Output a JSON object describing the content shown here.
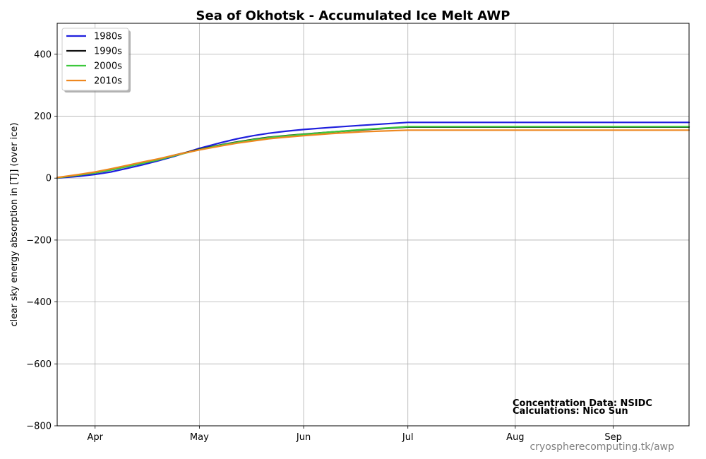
{
  "chart_data": {
    "type": "line",
    "title": "Sea of Okhotsk - Accumulated Ice Melt  AWP",
    "ylabel": "clear sky energy absorption in  [TJ] (over ice)",
    "xlabel": "",
    "x_axis_kind": "day-of-year",
    "xlim": [
      73,
      273
    ],
    "ylim": [
      -800,
      500
    ],
    "y_ticks": [
      -800,
      -600,
      -400,
      -200,
      0,
      200,
      400
    ],
    "y_tick_labels": [
      "−800",
      "−600",
      "−400",
      "−200",
      "0",
      "200",
      "400"
    ],
    "x_ticks": [
      {
        "day": 85,
        "label": "Apr"
      },
      {
        "day": 118,
        "label": "May"
      },
      {
        "day": 151,
        "label": "Jun"
      },
      {
        "day": 184,
        "label": "Jul"
      },
      {
        "day": 218,
        "label": "Aug"
      },
      {
        "day": 249,
        "label": "Sep"
      }
    ],
    "grid": true,
    "legend_position": "top-left",
    "x": [
      73,
      80,
      85,
      90,
      95,
      100,
      105,
      110,
      118,
      125,
      130,
      135,
      140,
      145,
      151,
      160,
      170,
      184,
      200,
      220,
      240,
      260,
      273
    ],
    "series": [
      {
        "name": "1980s",
        "color": "#1f1fdd",
        "values": [
          0,
          6,
          12,
          20,
          31,
          43,
          56,
          70,
          96,
          115,
          127,
          137,
          145,
          151,
          157,
          164,
          171,
          180,
          180,
          180,
          180,
          180,
          180
        ]
      },
      {
        "name": "1990s",
        "color": "#111111",
        "values": [
          1,
          10,
          18,
          28,
          39,
          50,
          61,
          74,
          93,
          108,
          117,
          125,
          132,
          137,
          142,
          149,
          156,
          165,
          165,
          165,
          165,
          165,
          165
        ]
      },
      {
        "name": "2000s",
        "color": "#3cc83c",
        "values": [
          1,
          10,
          17,
          26,
          37,
          48,
          59,
          72,
          92,
          107,
          116,
          124,
          131,
          136,
          141,
          149,
          157,
          166,
          166,
          166,
          166,
          166,
          166
        ]
      },
      {
        "name": "2010s",
        "color": "#ee8820",
        "values": [
          2,
          12,
          20,
          30,
          41,
          52,
          62,
          74,
          91,
          104,
          113,
          120,
          127,
          132,
          137,
          144,
          150,
          155,
          155,
          155,
          155,
          155,
          155
        ]
      }
    ],
    "annotations": [
      "Concentration Data: NSIDC",
      "Calculations: Nico Sun"
    ],
    "source": "cryospherecomputing.tk/awp"
  }
}
